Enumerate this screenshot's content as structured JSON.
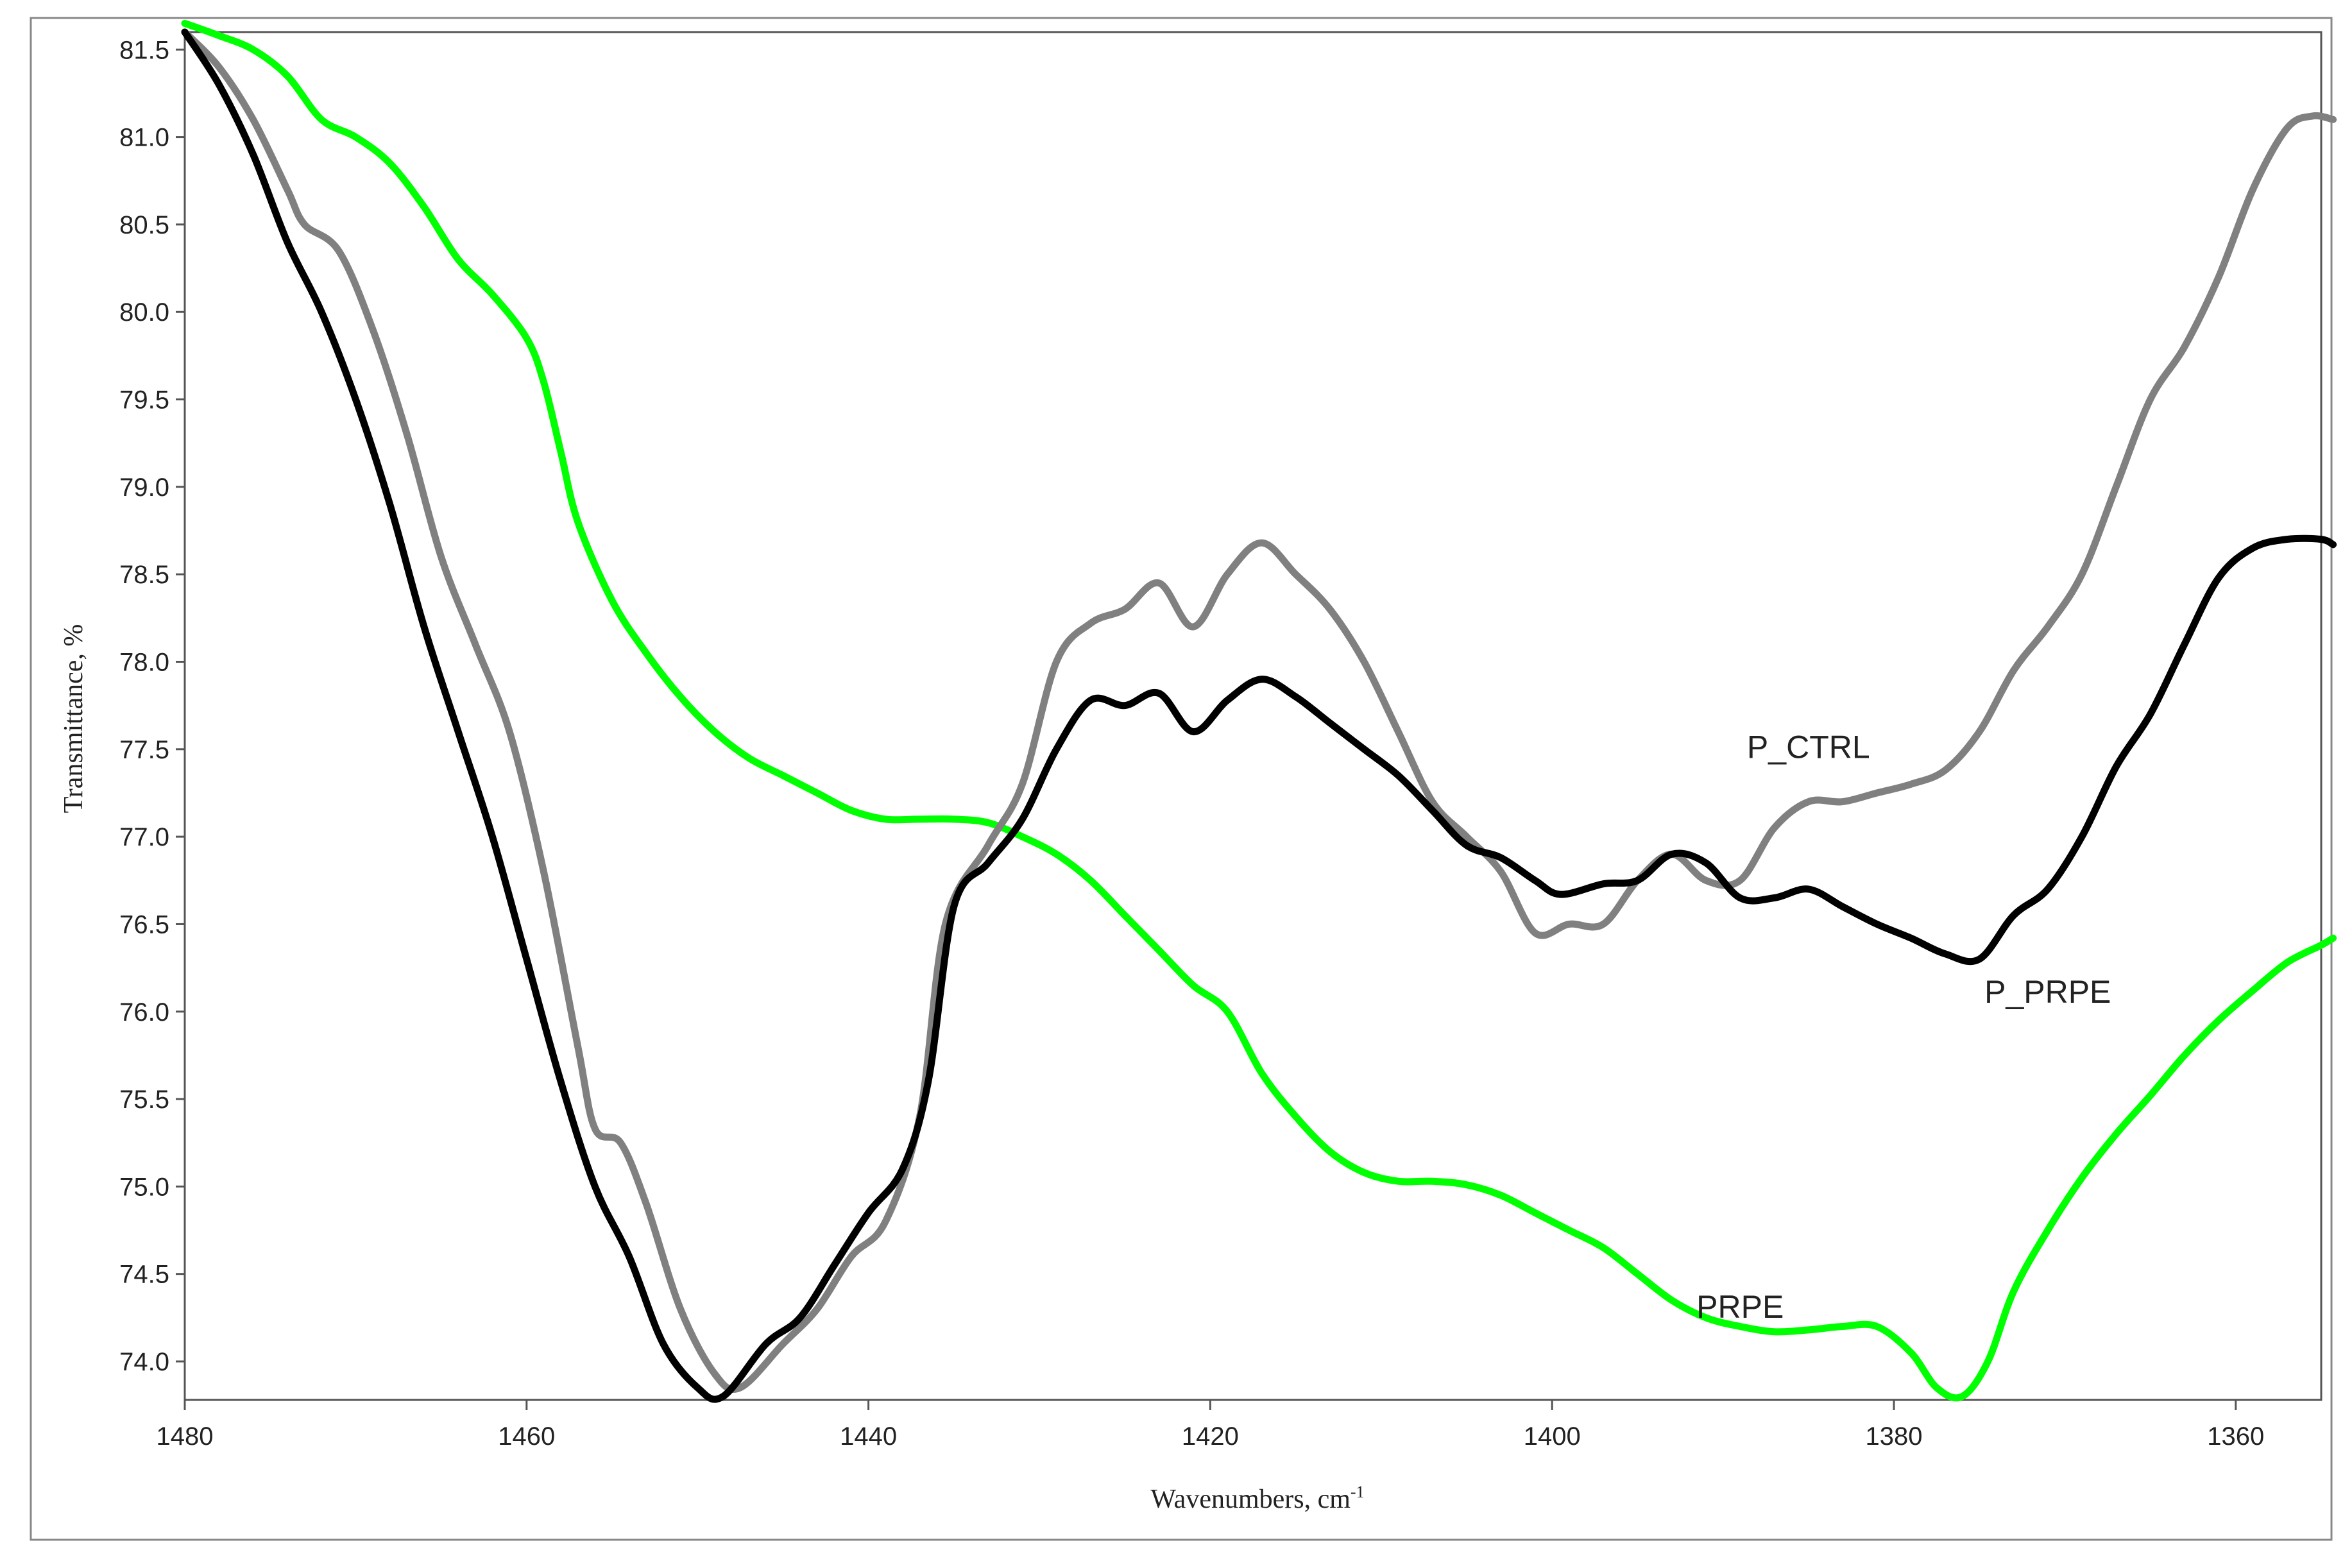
{
  "chart_data": {
    "type": "line",
    "title": "",
    "xlabel": "Wavenumbers, cm",
    "xlabel_superscript": "-1",
    "ylabel": "Transmittance, %",
    "xlim": [
      1480,
      1355
    ],
    "ylim": [
      73.78,
      81.6
    ],
    "x_ticks": [
      1480,
      1460,
      1440,
      1420,
      1400,
      1380,
      1360
    ],
    "y_ticks": [
      74.0,
      74.5,
      75.0,
      75.5,
      76.0,
      76.5,
      77.0,
      77.5,
      78.0,
      78.5,
      79.0,
      79.5,
      80.0,
      80.5,
      81.0,
      81.5
    ],
    "grid": false,
    "legend": "none",
    "series": [
      {
        "name": "P_CTRL",
        "color": "#808080",
        "label_at": [
          1385,
          77.45
        ],
        "points": [
          [
            1480,
            81.6
          ],
          [
            1478,
            81.4
          ],
          [
            1476,
            81.1
          ],
          [
            1474,
            80.7
          ],
          [
            1473,
            80.5
          ],
          [
            1471,
            80.35
          ],
          [
            1469,
            79.9
          ],
          [
            1467,
            79.3
          ],
          [
            1465,
            78.6
          ],
          [
            1463,
            78.1
          ],
          [
            1461,
            77.6
          ],
          [
            1459,
            76.8
          ],
          [
            1457,
            75.8
          ],
          [
            1456,
            75.33
          ],
          [
            1454.5,
            75.25
          ],
          [
            1453,
            74.9
          ],
          [
            1451,
            74.3
          ],
          [
            1449,
            73.93
          ],
          [
            1447.5,
            73.85
          ],
          [
            1445,
            74.1
          ],
          [
            1443,
            74.3
          ],
          [
            1441,
            74.6
          ],
          [
            1439,
            74.8
          ],
          [
            1437,
            75.4
          ],
          [
            1435.5,
            76.5
          ],
          [
            1433,
            76.95
          ],
          [
            1431,
            77.3
          ],
          [
            1429,
            78.0
          ],
          [
            1427,
            78.22
          ],
          [
            1425,
            78.3
          ],
          [
            1423,
            78.45
          ],
          [
            1421,
            78.2
          ],
          [
            1419,
            78.5
          ],
          [
            1417,
            78.68
          ],
          [
            1415,
            78.5
          ],
          [
            1413,
            78.3
          ],
          [
            1411,
            78.0
          ],
          [
            1409,
            77.6
          ],
          [
            1407,
            77.2
          ],
          [
            1405,
            77.0
          ],
          [
            1403,
            76.8
          ],
          [
            1401,
            76.45
          ],
          [
            1399,
            76.5
          ],
          [
            1397,
            76.5
          ],
          [
            1395,
            76.75
          ],
          [
            1393,
            76.9
          ],
          [
            1391,
            76.75
          ],
          [
            1389,
            76.75
          ],
          [
            1387,
            77.05
          ],
          [
            1385,
            77.2
          ],
          [
            1383,
            77.2
          ],
          [
            1381,
            77.25
          ],
          [
            1379,
            77.3
          ],
          [
            1377,
            77.38
          ],
          [
            1375,
            77.6
          ],
          [
            1373,
            77.95
          ],
          [
            1371,
            78.2
          ],
          [
            1369,
            78.5
          ],
          [
            1367,
            79.0
          ],
          [
            1365,
            79.5
          ],
          [
            1363,
            79.8
          ],
          [
            1361,
            80.2
          ],
          [
            1359,
            80.7
          ],
          [
            1357,
            81.05
          ],
          [
            1355.5,
            81.12
          ],
          [
            1354.3,
            81.1
          ]
        ]
      },
      {
        "name": "P_PRPE",
        "color": "#000000",
        "label_at": [
          1371,
          76.05
        ],
        "points": [
          [
            1480,
            81.6
          ],
          [
            1478,
            81.3
          ],
          [
            1476,
            80.9
          ],
          [
            1474,
            80.4
          ],
          [
            1472,
            80.0
          ],
          [
            1470,
            79.5
          ],
          [
            1468,
            78.9
          ],
          [
            1466,
            78.2
          ],
          [
            1464,
            77.6
          ],
          [
            1462,
            77.0
          ],
          [
            1460,
            76.3
          ],
          [
            1458,
            75.6
          ],
          [
            1456,
            75.0
          ],
          [
            1454,
            74.6
          ],
          [
            1452,
            74.1
          ],
          [
            1450,
            73.85
          ],
          [
            1448.5,
            73.8
          ],
          [
            1446,
            74.1
          ],
          [
            1444,
            74.25
          ],
          [
            1442,
            74.55
          ],
          [
            1440,
            74.85
          ],
          [
            1438,
            75.1
          ],
          [
            1436.5,
            75.6
          ],
          [
            1435,
            76.6
          ],
          [
            1433,
            76.85
          ],
          [
            1431,
            77.1
          ],
          [
            1429,
            77.5
          ],
          [
            1427,
            77.78
          ],
          [
            1425,
            77.75
          ],
          [
            1423,
            77.82
          ],
          [
            1421,
            77.6
          ],
          [
            1419,
            77.78
          ],
          [
            1417,
            77.9
          ],
          [
            1415,
            77.8
          ],
          [
            1413,
            77.65
          ],
          [
            1411,
            77.5
          ],
          [
            1409,
            77.35
          ],
          [
            1407,
            77.15
          ],
          [
            1405,
            76.95
          ],
          [
            1403,
            76.88
          ],
          [
            1401,
            76.75
          ],
          [
            1399.5,
            76.67
          ],
          [
            1397,
            76.73
          ],
          [
            1395,
            76.75
          ],
          [
            1393,
            76.9
          ],
          [
            1391,
            76.85
          ],
          [
            1389,
            76.65
          ],
          [
            1387,
            76.65
          ],
          [
            1385,
            76.7
          ],
          [
            1383,
            76.6
          ],
          [
            1381,
            76.5
          ],
          [
            1379,
            76.42
          ],
          [
            1377,
            76.33
          ],
          [
            1375,
            76.3
          ],
          [
            1373,
            76.55
          ],
          [
            1371,
            76.7
          ],
          [
            1369,
            77.0
          ],
          [
            1367,
            77.4
          ],
          [
            1365,
            77.7
          ],
          [
            1363,
            78.1
          ],
          [
            1361,
            78.48
          ],
          [
            1359,
            78.65
          ],
          [
            1357,
            78.7
          ],
          [
            1355,
            78.7
          ],
          [
            1354.3,
            78.67
          ]
        ]
      },
      {
        "name": "PRPE",
        "color": "#00ff00",
        "label_at": [
          1389,
          74.25
        ],
        "points": [
          [
            1480,
            81.65
          ],
          [
            1478,
            81.58
          ],
          [
            1476,
            81.5
          ],
          [
            1474,
            81.35
          ],
          [
            1472,
            81.1
          ],
          [
            1470,
            81.0
          ],
          [
            1468,
            80.85
          ],
          [
            1466,
            80.6
          ],
          [
            1464,
            80.3
          ],
          [
            1462,
            80.1
          ],
          [
            1460,
            79.85
          ],
          [
            1459,
            79.6
          ],
          [
            1458,
            79.2
          ],
          [
            1457,
            78.8
          ],
          [
            1455,
            78.35
          ],
          [
            1453,
            78.05
          ],
          [
            1451,
            77.8
          ],
          [
            1449,
            77.6
          ],
          [
            1447,
            77.45
          ],
          [
            1445,
            77.35
          ],
          [
            1443,
            77.25
          ],
          [
            1441,
            77.15
          ],
          [
            1439,
            77.1
          ],
          [
            1437,
            77.1
          ],
          [
            1435,
            77.1
          ],
          [
            1433,
            77.08
          ],
          [
            1431,
            77.0
          ],
          [
            1429,
            76.9
          ],
          [
            1427,
            76.75
          ],
          [
            1425,
            76.55
          ],
          [
            1423,
            76.35
          ],
          [
            1421,
            76.15
          ],
          [
            1419,
            76.0
          ],
          [
            1417,
            75.65
          ],
          [
            1415,
            75.4
          ],
          [
            1413,
            75.2
          ],
          [
            1411,
            75.08
          ],
          [
            1409,
            75.03
          ],
          [
            1407,
            75.03
          ],
          [
            1405,
            75.01
          ],
          [
            1403,
            74.95
          ],
          [
            1401,
            74.85
          ],
          [
            1399,
            74.75
          ],
          [
            1397,
            74.65
          ],
          [
            1395,
            74.5
          ],
          [
            1393,
            74.35
          ],
          [
            1391,
            74.25
          ],
          [
            1389,
            74.2
          ],
          [
            1387,
            74.17
          ],
          [
            1385,
            74.18
          ],
          [
            1383,
            74.2
          ],
          [
            1381,
            74.2
          ],
          [
            1379,
            74.05
          ],
          [
            1377.5,
            73.85
          ],
          [
            1376,
            73.8
          ],
          [
            1374.5,
            74.0
          ],
          [
            1373,
            74.4
          ],
          [
            1371,
            74.75
          ],
          [
            1369,
            75.05
          ],
          [
            1367,
            75.3
          ],
          [
            1365,
            75.52
          ],
          [
            1363,
            75.75
          ],
          [
            1361,
            75.95
          ],
          [
            1359,
            76.12
          ],
          [
            1357,
            76.28
          ],
          [
            1355,
            76.38
          ],
          [
            1354.3,
            76.42
          ]
        ]
      }
    ]
  }
}
